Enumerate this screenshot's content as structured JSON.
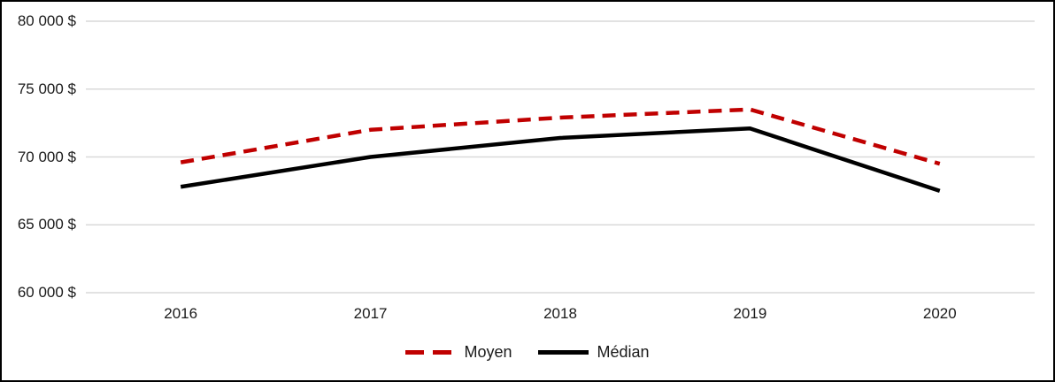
{
  "chart_data": {
    "type": "line",
    "title": "",
    "categories": [
      "2016",
      "2017",
      "2018",
      "2019",
      "2020"
    ],
    "series": [
      {
        "name": "Moyen",
        "color": "#C00000",
        "style": "dashed",
        "values": [
          69600,
          72000,
          72900,
          73500,
          69500
        ]
      },
      {
        "name": "Médian",
        "color": "#000000",
        "style": "solid",
        "values": [
          67800,
          70000,
          71400,
          72100,
          67500
        ]
      }
    ],
    "y_axis": {
      "min": 60000,
      "max": 80000,
      "tick_step": 5000,
      "ticks": [
        {
          "value": 80000,
          "label": "80 000 $"
        },
        {
          "value": 75000,
          "label": "75 000 $"
        },
        {
          "value": 70000,
          "label": "70 000 $"
        },
        {
          "value": 65000,
          "label": "65 000 $"
        },
        {
          "value": 60000,
          "label": "60 000 $"
        }
      ]
    },
    "legend": {
      "position": "bottom",
      "items": [
        "Moyen",
        "Médian"
      ]
    },
    "grid": true,
    "colors": {
      "gridline": "#D9D9D9",
      "background": "#FFFFFF",
      "border": "#000000",
      "text": "#1A1A1A"
    }
  }
}
